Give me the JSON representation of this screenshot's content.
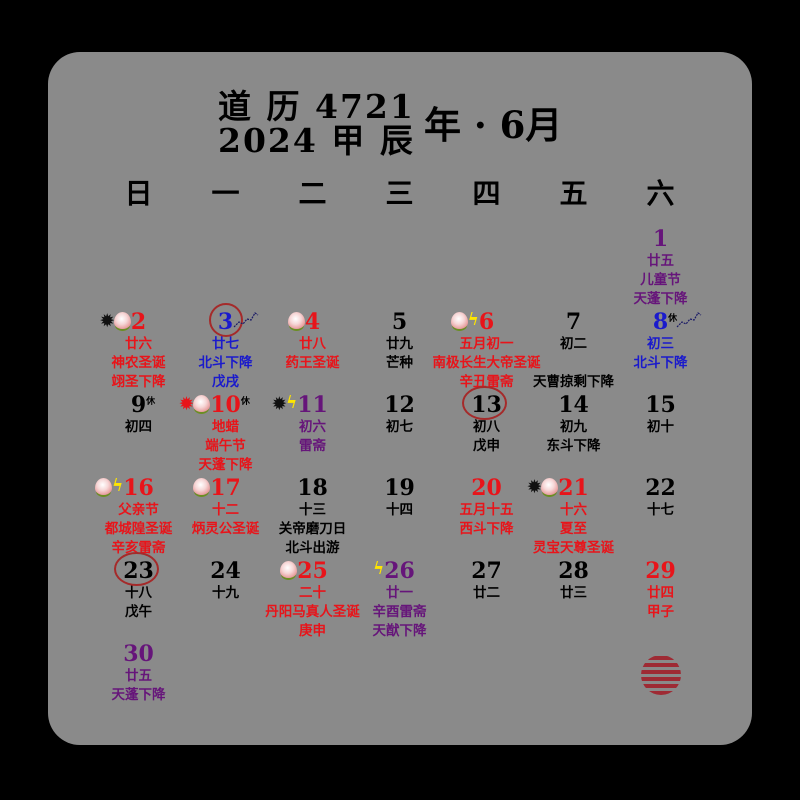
{
  "title": {
    "line1": "道 历 4721",
    "line2": "2024 甲 辰",
    "month": "年 · 6月"
  },
  "weekdays": [
    "日",
    "一",
    "二",
    "三",
    "四",
    "五",
    "六"
  ],
  "colors": {
    "background": "#000000",
    "card": "#8a8a8a",
    "red": "#e8141a",
    "blue": "#1a1acc",
    "purple": "#66157a",
    "black": "#000000",
    "ring": "#a52a2a",
    "seal": "#a0202a"
  },
  "seal": {
    "icon": "seal-icon"
  },
  "days": [
    {
      "n": "1",
      "col": 6,
      "row": 0,
      "color": "purple",
      "lines": [
        [
          "廿五",
          "purple"
        ],
        [
          "儿童节",
          "purple"
        ],
        [
          "天蓬下降",
          "purple"
        ]
      ],
      "icons": []
    },
    {
      "n": "2",
      "col": 0,
      "row": 1,
      "color": "red",
      "lines": [
        [
          "廿六",
          "red"
        ],
        [
          "神农圣诞",
          "red"
        ],
        [
          "翊圣下降",
          "red"
        ]
      ],
      "icons": [
        "spider-black",
        "peach"
      ]
    },
    {
      "n": "3",
      "col": 1,
      "row": 1,
      "color": "blue",
      "circled": true,
      "dipper": true,
      "lines": [
        [
          "廿七",
          "blue"
        ],
        [
          "北斗下降",
          "blue"
        ],
        [
          "戊戌",
          "blue"
        ]
      ],
      "icons": []
    },
    {
      "n": "4",
      "col": 2,
      "row": 1,
      "color": "red",
      "lines": [
        [
          "廿八",
          "red"
        ],
        [
          "药王圣诞",
          "red"
        ]
      ],
      "icons": [
        "peach"
      ]
    },
    {
      "n": "5",
      "col": 3,
      "row": 1,
      "color": "black",
      "lines": [
        [
          "廿九",
          "black"
        ],
        [
          "芒种",
          "black"
        ]
      ],
      "icons": []
    },
    {
      "n": "6",
      "col": 4,
      "row": 1,
      "color": "red",
      "lines": [
        [
          "五月初一",
          "red"
        ],
        [
          "南极长生大帝圣诞",
          "red"
        ],
        [
          "辛丑雷斋",
          "red"
        ]
      ],
      "icons": [
        "peach",
        "lightning"
      ]
    },
    {
      "n": "7",
      "col": 5,
      "row": 1,
      "color": "black",
      "lines": [
        [
          "初二",
          "black"
        ],
        [
          "",
          ""
        ],
        [
          "天曹掠剩下降",
          "black"
        ]
      ],
      "icons": []
    },
    {
      "n": "8",
      "col": 6,
      "row": 1,
      "color": "blue",
      "rest": "休",
      "dipper": true,
      "lines": [
        [
          "初三",
          "blue"
        ],
        [
          "北斗下降",
          "blue"
        ]
      ],
      "icons": []
    },
    {
      "n": "9",
      "col": 0,
      "row": 2,
      "color": "black",
      "rest": "休",
      "lines": [
        [
          "初四",
          "black"
        ]
      ],
      "icons": []
    },
    {
      "n": "10",
      "col": 1,
      "row": 2,
      "color": "red",
      "rest": "休",
      "lines": [
        [
          "地蜡",
          "red"
        ],
        [
          "端午节",
          "red"
        ],
        [
          "天蓬下降",
          "red"
        ]
      ],
      "icons": [
        "spider-red",
        "peach"
      ]
    },
    {
      "n": "11",
      "col": 2,
      "row": 2,
      "color": "purple",
      "lines": [
        [
          "初六",
          "purple"
        ],
        [
          "雷斋",
          "purple"
        ]
      ],
      "icons": [
        "spider-black",
        "lightning"
      ]
    },
    {
      "n": "12",
      "col": 3,
      "row": 2,
      "color": "black",
      "lines": [
        [
          "初七",
          "black"
        ]
      ],
      "icons": []
    },
    {
      "n": "13",
      "col": 4,
      "row": 2,
      "color": "black",
      "circled": true,
      "lines": [
        [
          "初八",
          "black"
        ],
        [
          "戊申",
          "black"
        ]
      ],
      "icons": []
    },
    {
      "n": "14",
      "col": 5,
      "row": 2,
      "color": "black",
      "lines": [
        [
          "初九",
          "black"
        ],
        [
          "东斗下降",
          "black"
        ]
      ],
      "icons": []
    },
    {
      "n": "15",
      "col": 6,
      "row": 2,
      "color": "black",
      "lines": [
        [
          "初十",
          "black"
        ]
      ],
      "icons": []
    },
    {
      "n": "16",
      "col": 0,
      "row": 3,
      "color": "red",
      "lines": [
        [
          "父亲节",
          "red"
        ],
        [
          "都城隍圣诞",
          "red"
        ],
        [
          "辛亥雷斋",
          "red"
        ]
      ],
      "icons": [
        "peach",
        "lightning"
      ]
    },
    {
      "n": "17",
      "col": 1,
      "row": 3,
      "color": "red",
      "lines": [
        [
          "十二",
          "red"
        ],
        [
          "炳灵公圣诞",
          "red"
        ]
      ],
      "icons": [
        "peach"
      ]
    },
    {
      "n": "18",
      "col": 2,
      "row": 3,
      "color": "black",
      "lines": [
        [
          "十三",
          "black"
        ],
        [
          "关帝磨刀日",
          "black"
        ],
        [
          "北斗出游",
          "black"
        ]
      ],
      "icons": []
    },
    {
      "n": "19",
      "col": 3,
      "row": 3,
      "color": "black",
      "lines": [
        [
          "十四",
          "black"
        ]
      ],
      "icons": []
    },
    {
      "n": "20",
      "col": 4,
      "row": 3,
      "color": "red",
      "lines": [
        [
          "五月十五",
          "red"
        ],
        [
          "西斗下降",
          "red"
        ]
      ],
      "icons": []
    },
    {
      "n": "21",
      "col": 5,
      "row": 3,
      "color": "red",
      "lines": [
        [
          "十六",
          "red"
        ],
        [
          "夏至",
          "red"
        ],
        [
          "灵宝天尊圣诞",
          "red"
        ]
      ],
      "icons": [
        "spider-black",
        "peach"
      ]
    },
    {
      "n": "22",
      "col": 6,
      "row": 3,
      "color": "black",
      "lines": [
        [
          "十七",
          "black"
        ]
      ],
      "icons": []
    },
    {
      "n": "23",
      "col": 0,
      "row": 4,
      "color": "black",
      "circled": true,
      "lines": [
        [
          "十八",
          "black"
        ],
        [
          "戊午",
          "black"
        ]
      ],
      "icons": []
    },
    {
      "n": "24",
      "col": 1,
      "row": 4,
      "color": "black",
      "lines": [
        [
          "十九",
          "black"
        ]
      ],
      "icons": []
    },
    {
      "n": "25",
      "col": 2,
      "row": 4,
      "color": "red",
      "lines": [
        [
          "二十",
          "red"
        ],
        [
          "丹阳马真人圣诞",
          "red"
        ],
        [
          "庚申",
          "red"
        ]
      ],
      "icons": [
        "peach"
      ]
    },
    {
      "n": "26",
      "col": 3,
      "row": 4,
      "color": "purple",
      "lines": [
        [
          "廿一",
          "purple"
        ],
        [
          "辛酉雷斋",
          "purple"
        ],
        [
          "天猷下降",
          "purple"
        ]
      ],
      "icons": [
        "lightning"
      ]
    },
    {
      "n": "27",
      "col": 4,
      "row": 4,
      "color": "black",
      "lines": [
        [
          "廿二",
          "black"
        ]
      ],
      "icons": []
    },
    {
      "n": "28",
      "col": 5,
      "row": 4,
      "color": "black",
      "lines": [
        [
          "廿三",
          "black"
        ]
      ],
      "icons": []
    },
    {
      "n": "29",
      "col": 6,
      "row": 4,
      "color": "red",
      "lines": [
        [
          "廿四",
          "red"
        ],
        [
          "甲子",
          "red"
        ]
      ],
      "icons": []
    },
    {
      "n": "30",
      "col": 0,
      "row": 5,
      "color": "purple",
      "lines": [
        [
          "廿五",
          "purple"
        ],
        [
          "天蓬下降",
          "purple"
        ]
      ],
      "icons": []
    }
  ]
}
